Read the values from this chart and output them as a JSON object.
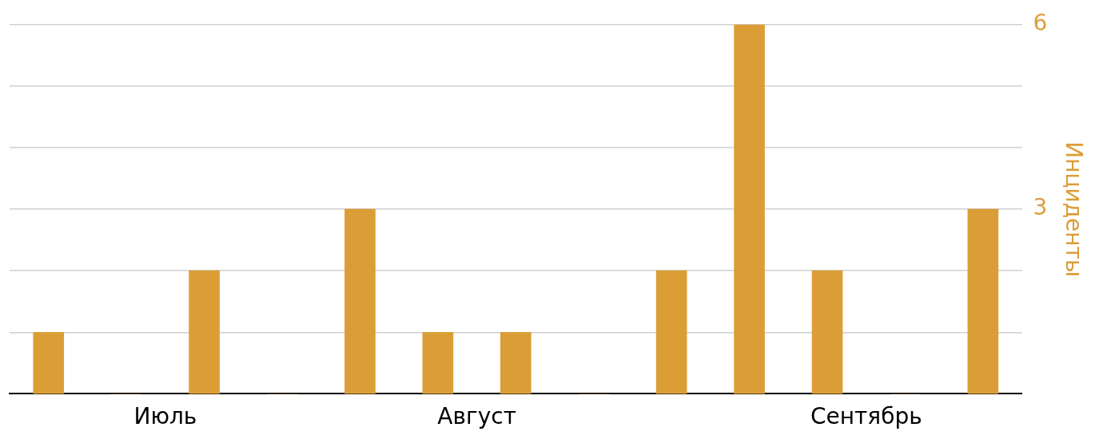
{
  "chart_data": {
    "type": "bar",
    "ylabel": "Инциденты",
    "categories": [
      null,
      "Июль",
      null,
      null,
      null,
      "Август",
      null,
      null,
      null,
      null,
      "Сентябрь",
      null,
      null
    ],
    "values": [
      1,
      0,
      2,
      0,
      3,
      1,
      1,
      0,
      2,
      6,
      2,
      0,
      3
    ],
    "color": "#db9e37",
    "ylim": [
      0,
      6
    ],
    "yticks": [
      {
        "value": 1,
        "label": null
      },
      {
        "value": 2,
        "label": null
      },
      3,
      {
        "value": 4,
        "label": null
      },
      {
        "value": 5,
        "label": null
      },
      6
    ],
    "grid": "y"
  }
}
